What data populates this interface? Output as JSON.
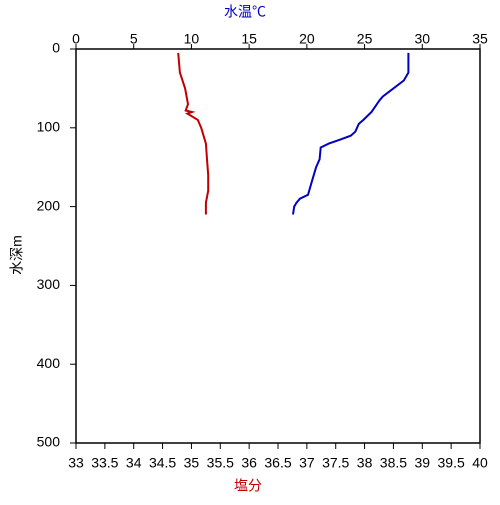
{
  "chart_data": {
    "type": "line",
    "xlabel": "塩分",
    "xlabel_color": "#c00000",
    "x2label": "水温℃",
    "x2label_color": "#0000c0",
    "ylabel": "水深m",
    "xlim": [
      33,
      40
    ],
    "xticks": [
      33,
      33.5,
      34,
      34.5,
      35,
      35.5,
      36,
      36.5,
      37,
      37.5,
      38,
      38.5,
      39,
      39.5,
      40
    ],
    "x2lim": [
      0,
      35
    ],
    "x2ticks": [
      0,
      5,
      10,
      15,
      20,
      25,
      30,
      35
    ],
    "ylim": [
      0,
      500
    ],
    "yticks": [
      0,
      100,
      200,
      300,
      400,
      500
    ],
    "y_inverted": true,
    "series": [
      {
        "color": "#0000c0",
        "axis": "x2",
        "depth": [
          5,
          30,
          40,
          50,
          60,
          65,
          80,
          90,
          95,
          105,
          110,
          115,
          120,
          125,
          140,
          150,
          165,
          175,
          185,
          190,
          195,
          200,
          210
        ],
        "values": [
          28.8,
          28.8,
          28.4,
          27.5,
          26.6,
          26.3,
          25.6,
          24.9,
          24.5,
          24.2,
          23.8,
          22.9,
          21.9,
          21.2,
          21.1,
          20.8,
          20.5,
          20.3,
          20.1,
          19.4,
          19.1,
          18.9,
          18.8
        ]
      },
      {
        "color": "#c00000",
        "axis": "x",
        "depth": [
          5,
          30,
          50,
          70,
          78,
          80,
          82,
          90,
          100,
          120,
          140,
          160,
          180,
          195,
          210
        ],
        "values": [
          34.77,
          34.8,
          34.89,
          34.94,
          34.9,
          35.01,
          34.93,
          35.11,
          35.17,
          35.25,
          35.27,
          35.29,
          35.29,
          35.25,
          35.25
        ]
      }
    ]
  }
}
